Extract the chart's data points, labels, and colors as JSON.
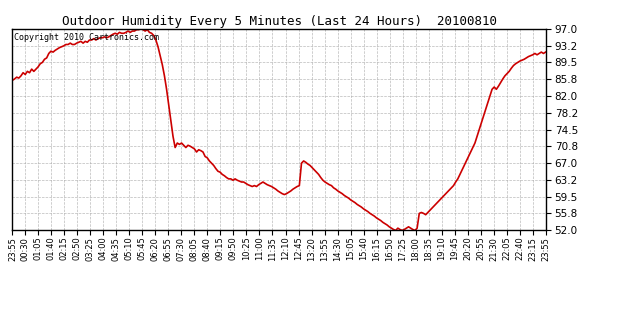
{
  "title": "Outdoor Humidity Every 5 Minutes (Last 24 Hours)  20100810",
  "copyright_text": "Copyright 2010 Cartronics.com",
  "line_color": "#cc0000",
  "background_color": "#ffffff",
  "grid_color": "#aaaaaa",
  "ylim": [
    52.0,
    97.0
  ],
  "yticks": [
    52.0,
    55.8,
    59.5,
    63.2,
    67.0,
    70.8,
    74.5,
    78.2,
    82.0,
    85.8,
    89.5,
    93.2,
    97.0
  ],
  "xtick_labels": [
    "23:55",
    "00:30",
    "01:05",
    "01:40",
    "02:15",
    "02:50",
    "03:25",
    "04:00",
    "04:35",
    "05:10",
    "05:45",
    "06:20",
    "06:55",
    "07:30",
    "08:05",
    "08:40",
    "09:15",
    "09:50",
    "10:25",
    "11:00",
    "11:35",
    "12:10",
    "12:45",
    "13:20",
    "13:55",
    "14:30",
    "15:05",
    "15:40",
    "16:15",
    "16:50",
    "17:25",
    "18:00",
    "18:35",
    "19:10",
    "19:45",
    "20:20",
    "20:55",
    "21:30",
    "22:05",
    "22:40",
    "23:15",
    "23:55"
  ],
  "humidity_data": [
    85.5,
    85.8,
    86.2,
    86.0,
    86.5,
    87.2,
    86.8,
    87.5,
    87.2,
    88.0,
    87.5,
    88.0,
    88.5,
    89.2,
    89.5,
    90.2,
    90.5,
    91.5,
    92.0,
    91.8,
    92.2,
    92.5,
    92.8,
    93.0,
    93.2,
    93.5,
    93.5,
    93.8,
    93.5,
    93.5,
    93.8,
    94.0,
    94.2,
    93.8,
    94.2,
    94.0,
    94.5,
    94.5,
    94.8,
    94.5,
    94.8,
    95.0,
    95.0,
    95.2,
    95.0,
    95.2,
    95.5,
    95.8,
    96.0,
    95.8,
    96.2,
    96.0,
    96.0,
    96.2,
    96.5,
    96.2,
    96.5,
    96.5,
    96.8,
    96.8,
    97.0,
    96.8,
    96.5,
    96.8,
    96.2,
    96.0,
    95.5,
    94.5,
    93.0,
    91.0,
    89.0,
    86.5,
    83.5,
    80.0,
    76.5,
    73.0,
    70.5,
    71.5,
    71.2,
    71.5,
    71.0,
    70.5,
    71.0,
    70.8,
    70.5,
    70.2,
    69.5,
    70.0,
    69.8,
    69.5,
    68.5,
    68.2,
    67.5,
    67.0,
    66.5,
    65.8,
    65.2,
    65.0,
    64.5,
    64.2,
    63.8,
    63.5,
    63.5,
    63.2,
    63.5,
    63.2,
    63.0,
    62.8,
    62.8,
    62.5,
    62.2,
    62.0,
    61.8,
    62.0,
    61.8,
    62.2,
    62.5,
    62.8,
    62.5,
    62.2,
    62.0,
    61.8,
    61.5,
    61.2,
    60.8,
    60.5,
    60.2,
    60.0,
    60.2,
    60.5,
    60.8,
    61.2,
    61.5,
    61.8,
    62.0,
    67.0,
    67.5,
    67.2,
    66.8,
    66.5,
    66.0,
    65.5,
    65.0,
    64.5,
    63.8,
    63.2,
    62.8,
    62.5,
    62.2,
    62.0,
    61.5,
    61.2,
    60.8,
    60.5,
    60.2,
    59.8,
    59.5,
    59.2,
    58.8,
    58.5,
    58.2,
    57.8,
    57.5,
    57.2,
    56.8,
    56.5,
    56.2,
    55.8,
    55.5,
    55.2,
    54.8,
    54.5,
    54.2,
    53.8,
    53.5,
    53.2,
    52.8,
    52.5,
    52.2,
    52.0,
    52.5,
    52.2,
    52.0,
    52.2,
    52.5,
    52.8,
    52.5,
    52.2,
    52.0,
    52.5,
    55.8,
    56.0,
    55.8,
    55.5,
    56.0,
    56.5,
    57.0,
    57.5,
    58.0,
    58.5,
    59.0,
    59.5,
    60.0,
    60.5,
    61.0,
    61.5,
    62.0,
    62.8,
    63.5,
    64.5,
    65.5,
    66.5,
    67.5,
    68.5,
    69.5,
    70.5,
    71.5,
    73.0,
    74.5,
    76.0,
    77.5,
    79.0,
    80.5,
    82.0,
    83.5,
    84.0,
    83.5,
    84.2,
    85.0,
    85.8,
    86.5,
    87.0,
    87.5,
    88.2,
    88.8,
    89.2,
    89.5,
    89.8,
    90.0,
    90.2,
    90.5,
    90.8,
    91.0,
    91.2,
    91.5,
    91.2,
    91.5,
    91.8,
    91.5,
    91.8
  ]
}
